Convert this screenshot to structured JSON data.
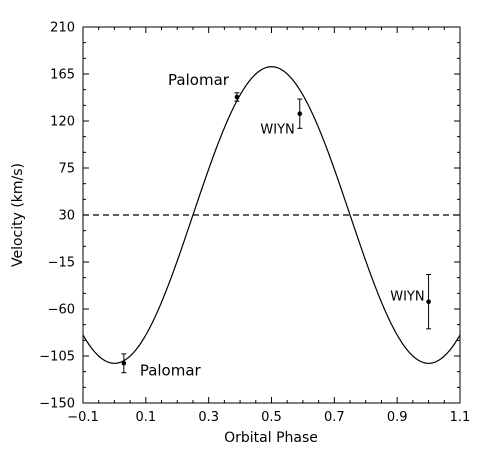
{
  "chart_data": {
    "type": "scatter",
    "title": "",
    "xlabel": "Orbital Phase",
    "ylabel": "Velocity (km/s)",
    "xlim": [
      -0.1,
      1.1
    ],
    "ylim": [
      -150,
      210
    ],
    "xticks": [
      -0.1,
      0.1,
      0.3,
      0.5,
      0.7,
      0.9,
      1.1
    ],
    "yticks": [
      -150,
      -105,
      -60,
      -15,
      30,
      75,
      120,
      165,
      210
    ],
    "xtick_labels": [
      "−0.1",
      "0.1",
      "0.3",
      "0.5",
      "0.7",
      "0.9",
      "1.1"
    ],
    "ytick_labels": [
      "−150",
      "−105",
      "−60",
      "−15",
      "30",
      "75",
      "120",
      "165",
      "210"
    ],
    "grid": false,
    "reference_line": {
      "y": 30,
      "style": "dashed"
    },
    "model_curve": {
      "form": "sinusoid",
      "gamma": 30,
      "semi_amplitude": 142,
      "phase_of_maximum": 0.5
    },
    "series": [
      {
        "points": [
          {
            "x": 0.03,
            "y": -112,
            "err": 9,
            "label": "Palomar"
          },
          {
            "x": 0.39,
            "y": 143,
            "err": 4,
            "label": "Palomar"
          },
          {
            "x": 0.59,
            "y": 127,
            "err": 14,
            "label": "WIYN"
          },
          {
            "x": 1.0,
            "y": -53,
            "err": 26,
            "label": "WIYN"
          }
        ]
      }
    ]
  }
}
